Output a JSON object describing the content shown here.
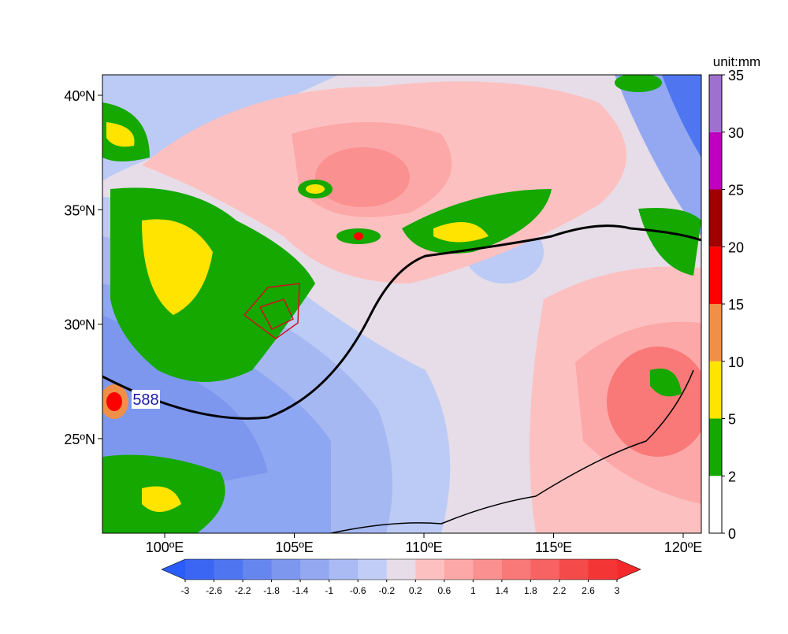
{
  "map": {
    "lat_labels": [
      "40ºN",
      "35ºN",
      "30ºN",
      "25ºN"
    ],
    "lon_labels": [
      "100ºE",
      "105ºE",
      "110ºE",
      "115ºE",
      "120ºE"
    ],
    "contour_label": "588"
  },
  "precip_colorbar": {
    "unit": "unit:mm",
    "labels": [
      0,
      2,
      5,
      10,
      15,
      20,
      25,
      30,
      35
    ],
    "colors": [
      "#ffffff",
      "#14a800",
      "#ffe400",
      "#f09048",
      "#ff0000",
      "#a00000",
      "#c000c0",
      "#a070d0"
    ]
  },
  "anomaly_colorbar": {
    "labels": [
      -3,
      -2.6,
      -2.2,
      -1.8,
      -1.4,
      -1,
      -0.6,
      -0.2,
      0.2,
      0.6,
      1,
      1.4,
      1.8,
      2.2,
      2.6,
      3
    ],
    "colors": [
      "#2a5cf8",
      "#3a66f3",
      "#4f76f0",
      "#6686ef",
      "#7d97ef",
      "#93a8f1",
      "#aabaf3",
      "#c1cdf6",
      "#e6dde9",
      "#fdc0c0",
      "#fca8a8",
      "#fb9090",
      "#f97878",
      "#f76262",
      "#f54a4a",
      "#f43535",
      "#f42a2a"
    ]
  }
}
